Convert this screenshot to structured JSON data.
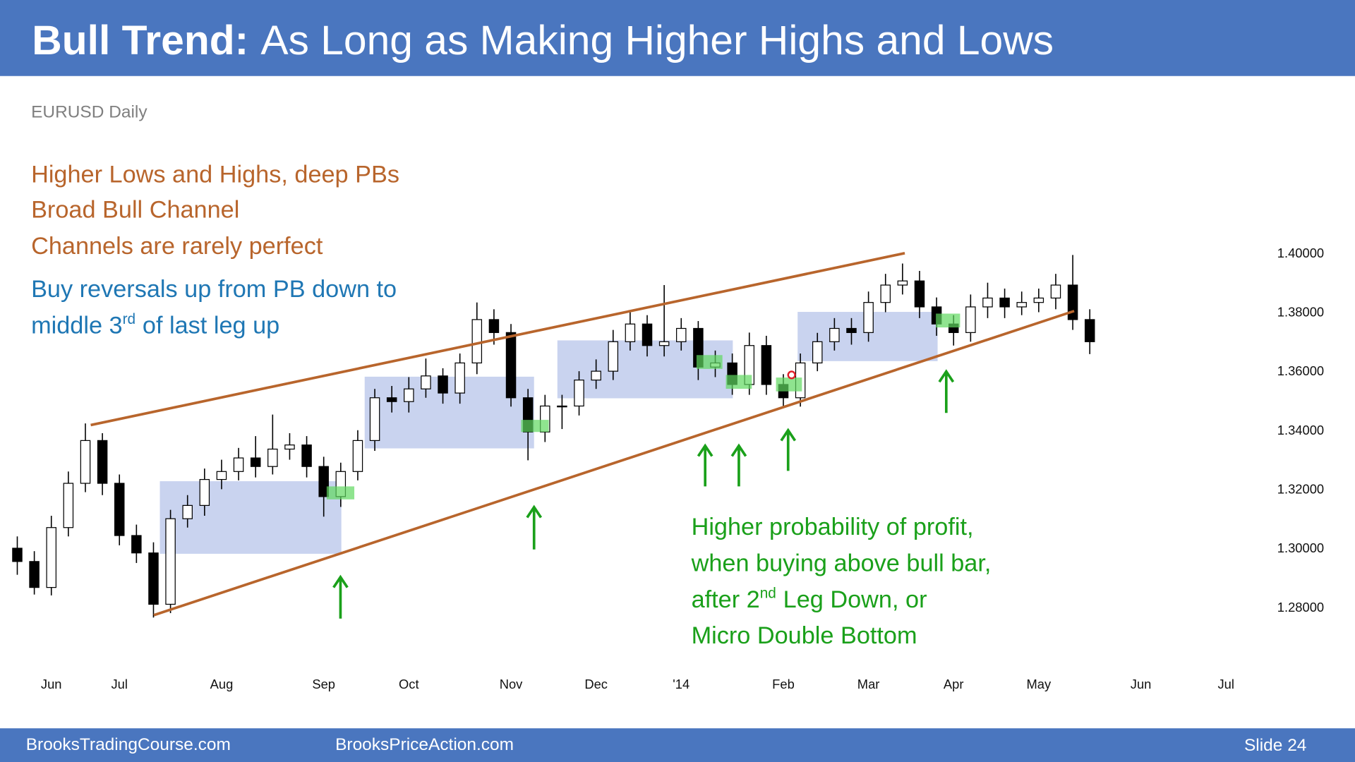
{
  "header": {
    "bold": "Bull Trend:",
    "rest": "As Long as Making Higher Highs and Lows"
  },
  "chart_data": {
    "type": "candlestick",
    "title": "EURUSD Daily",
    "color": "#000000",
    "categories": [
      null,
      null,
      "Jun",
      null,
      null,
      null,
      "Jul",
      null,
      null,
      null,
      null,
      null,
      "Aug",
      null,
      null,
      null,
      null,
      null,
      "Sep",
      null,
      null,
      null,
      null,
      "Oct",
      null,
      null,
      null,
      null,
      null,
      "Nov",
      null,
      null,
      null,
      null,
      "Dec",
      null,
      null,
      null,
      null,
      "'14",
      null,
      null,
      null,
      null,
      null,
      "Feb",
      null,
      null,
      null,
      null,
      "Mar",
      null,
      null,
      null,
      null,
      "Apr",
      null,
      null,
      null,
      null,
      "May",
      null,
      null,
      null,
      null,
      null,
      "Jun",
      null,
      null,
      null,
      null,
      "Jul"
    ],
    "open": [
      1.3,
      1.2955,
      1.2867,
      1.307,
      1.322,
      1.3365,
      1.322,
      1.3043,
      1.2984,
      1.281,
      1.31,
      1.3145,
      1.3233,
      1.326,
      1.3306,
      1.3277,
      1.3336,
      1.335,
      1.3277,
      1.3175,
      1.326,
      1.3365,
      1.351,
      1.3497,
      1.354,
      1.3584,
      1.3526,
      1.3628,
      1.3775,
      1.3731,
      1.351,
      1.3394,
      1.3482,
      1.3482,
      1.357,
      1.36,
      1.37,
      1.376,
      1.3687,
      1.37,
      1.3745,
      1.3614,
      1.3628,
      1.3555,
      1.3687,
      1.3555,
      1.351,
      1.3628,
      1.37,
      1.3745,
      1.3731,
      1.3833,
      1.3892,
      1.3906,
      1.3818,
      1.376,
      1.3731,
      1.3818,
      1.3848,
      1.3818,
      1.3833,
      1.3848,
      1.3892,
      1.3775,
      null,
      null,
      null,
      null,
      null,
      null,
      null,
      null
    ],
    "high": [
      1.304,
      1.299,
      1.311,
      1.326,
      1.3423,
      1.339,
      1.325,
      1.308,
      1.302,
      1.313,
      1.318,
      1.327,
      1.33,
      1.334,
      1.338,
      1.3453,
      1.339,
      1.338,
      1.331,
      1.329,
      1.34,
      1.354,
      1.355,
      1.358,
      1.3643,
      1.361,
      1.366,
      1.3833,
      1.381,
      1.376,
      1.354,
      1.352,
      1.352,
      1.36,
      1.364,
      1.374,
      1.38,
      1.379,
      1.3892,
      1.378,
      1.377,
      1.367,
      1.366,
      1.3731,
      1.372,
      1.359,
      1.366,
      1.373,
      1.378,
      1.378,
      1.387,
      1.393,
      1.3965,
      1.394,
      1.385,
      1.379,
      1.386,
      1.39,
      1.388,
      1.387,
      1.388,
      1.393,
      1.3994,
      1.381,
      null,
      null,
      null,
      null,
      null,
      null,
      null,
      null
    ],
    "low": [
      1.291,
      1.2843,
      1.284,
      1.304,
      1.319,
      1.318,
      1.301,
      1.295,
      1.2765,
      1.278,
      1.307,
      1.311,
      1.32,
      1.323,
      1.324,
      1.325,
      1.33,
      1.324,
      1.3107,
      1.314,
      1.323,
      1.333,
      1.346,
      1.346,
      1.351,
      1.349,
      1.349,
      1.359,
      1.369,
      1.348,
      1.3298,
      1.336,
      1.3404,
      1.345,
      1.354,
      1.357,
      1.367,
      1.365,
      1.365,
      1.367,
      1.357,
      1.358,
      1.352,
      1.352,
      1.352,
      1.3482,
      1.348,
      1.36,
      1.367,
      1.369,
      1.37,
      1.38,
      1.386,
      1.378,
      1.372,
      1.3687,
      1.37,
      1.378,
      1.378,
      1.379,
      1.38,
      1.381,
      1.374,
      1.3658,
      null,
      null,
      null,
      null,
      null,
      null,
      null,
      null
    ],
    "close": [
      1.2955,
      1.2867,
      1.307,
      1.322,
      1.3365,
      1.322,
      1.3043,
      1.2984,
      1.281,
      1.31,
      1.3145,
      1.3233,
      1.326,
      1.3306,
      1.3277,
      1.3336,
      1.335,
      1.3277,
      1.3175,
      1.326,
      1.3365,
      1.351,
      1.3497,
      1.354,
      1.3584,
      1.3526,
      1.3628,
      1.3775,
      1.3731,
      1.351,
      1.3394,
      1.3482,
      1.3482,
      1.357,
      1.36,
      1.37,
      1.376,
      1.3687,
      1.37,
      1.3745,
      1.3614,
      1.3628,
      1.3555,
      1.3687,
      1.3555,
      1.351,
      1.3628,
      1.37,
      1.3745,
      1.3731,
      1.3833,
      1.3892,
      1.3906,
      1.3818,
      1.376,
      1.3731,
      1.3818,
      1.3848,
      1.3818,
      1.3833,
      1.3848,
      1.3892,
      1.3775,
      1.37,
      null,
      null,
      null,
      null,
      null,
      null,
      null,
      null
    ],
    "ylim": [
      1.27,
      1.405
    ],
    "yticks": [
      {
        "value": 1.28,
        "label": "1.28000"
      },
      {
        "value": 1.3,
        "label": "1.30000"
      },
      {
        "value": 1.32,
        "label": "1.32000"
      },
      {
        "value": 1.34,
        "label": "1.34000"
      },
      {
        "value": 1.36,
        "label": "1.36000"
      },
      {
        "value": 1.38,
        "label": "1.38000"
      },
      {
        "value": 1.4,
        "label": "1.40000"
      }
    ],
    "grid": false
  },
  "notes": {
    "orange": [
      "Higher Lows and Highs, deep PBs",
      "Broad Bull Channel",
      "Channels are rarely perfect"
    ],
    "blue": {
      "line1": "Buy reversals up from PB down to",
      "before": "middle 3",
      "sup": "rd",
      "after": "of last leg up"
    },
    "green": {
      "line1": "Higher probability of profit,",
      "line2": "when buying above bull bar,",
      "before": "after 2",
      "sup": "nd",
      "after": "Leg Down, or",
      "line4": "Micro Double Bottom"
    }
  },
  "footer": {
    "left": "BrooksTradingCourse.com",
    "middle": "BrooksPriceAction.com",
    "right": "Slide 24"
  }
}
